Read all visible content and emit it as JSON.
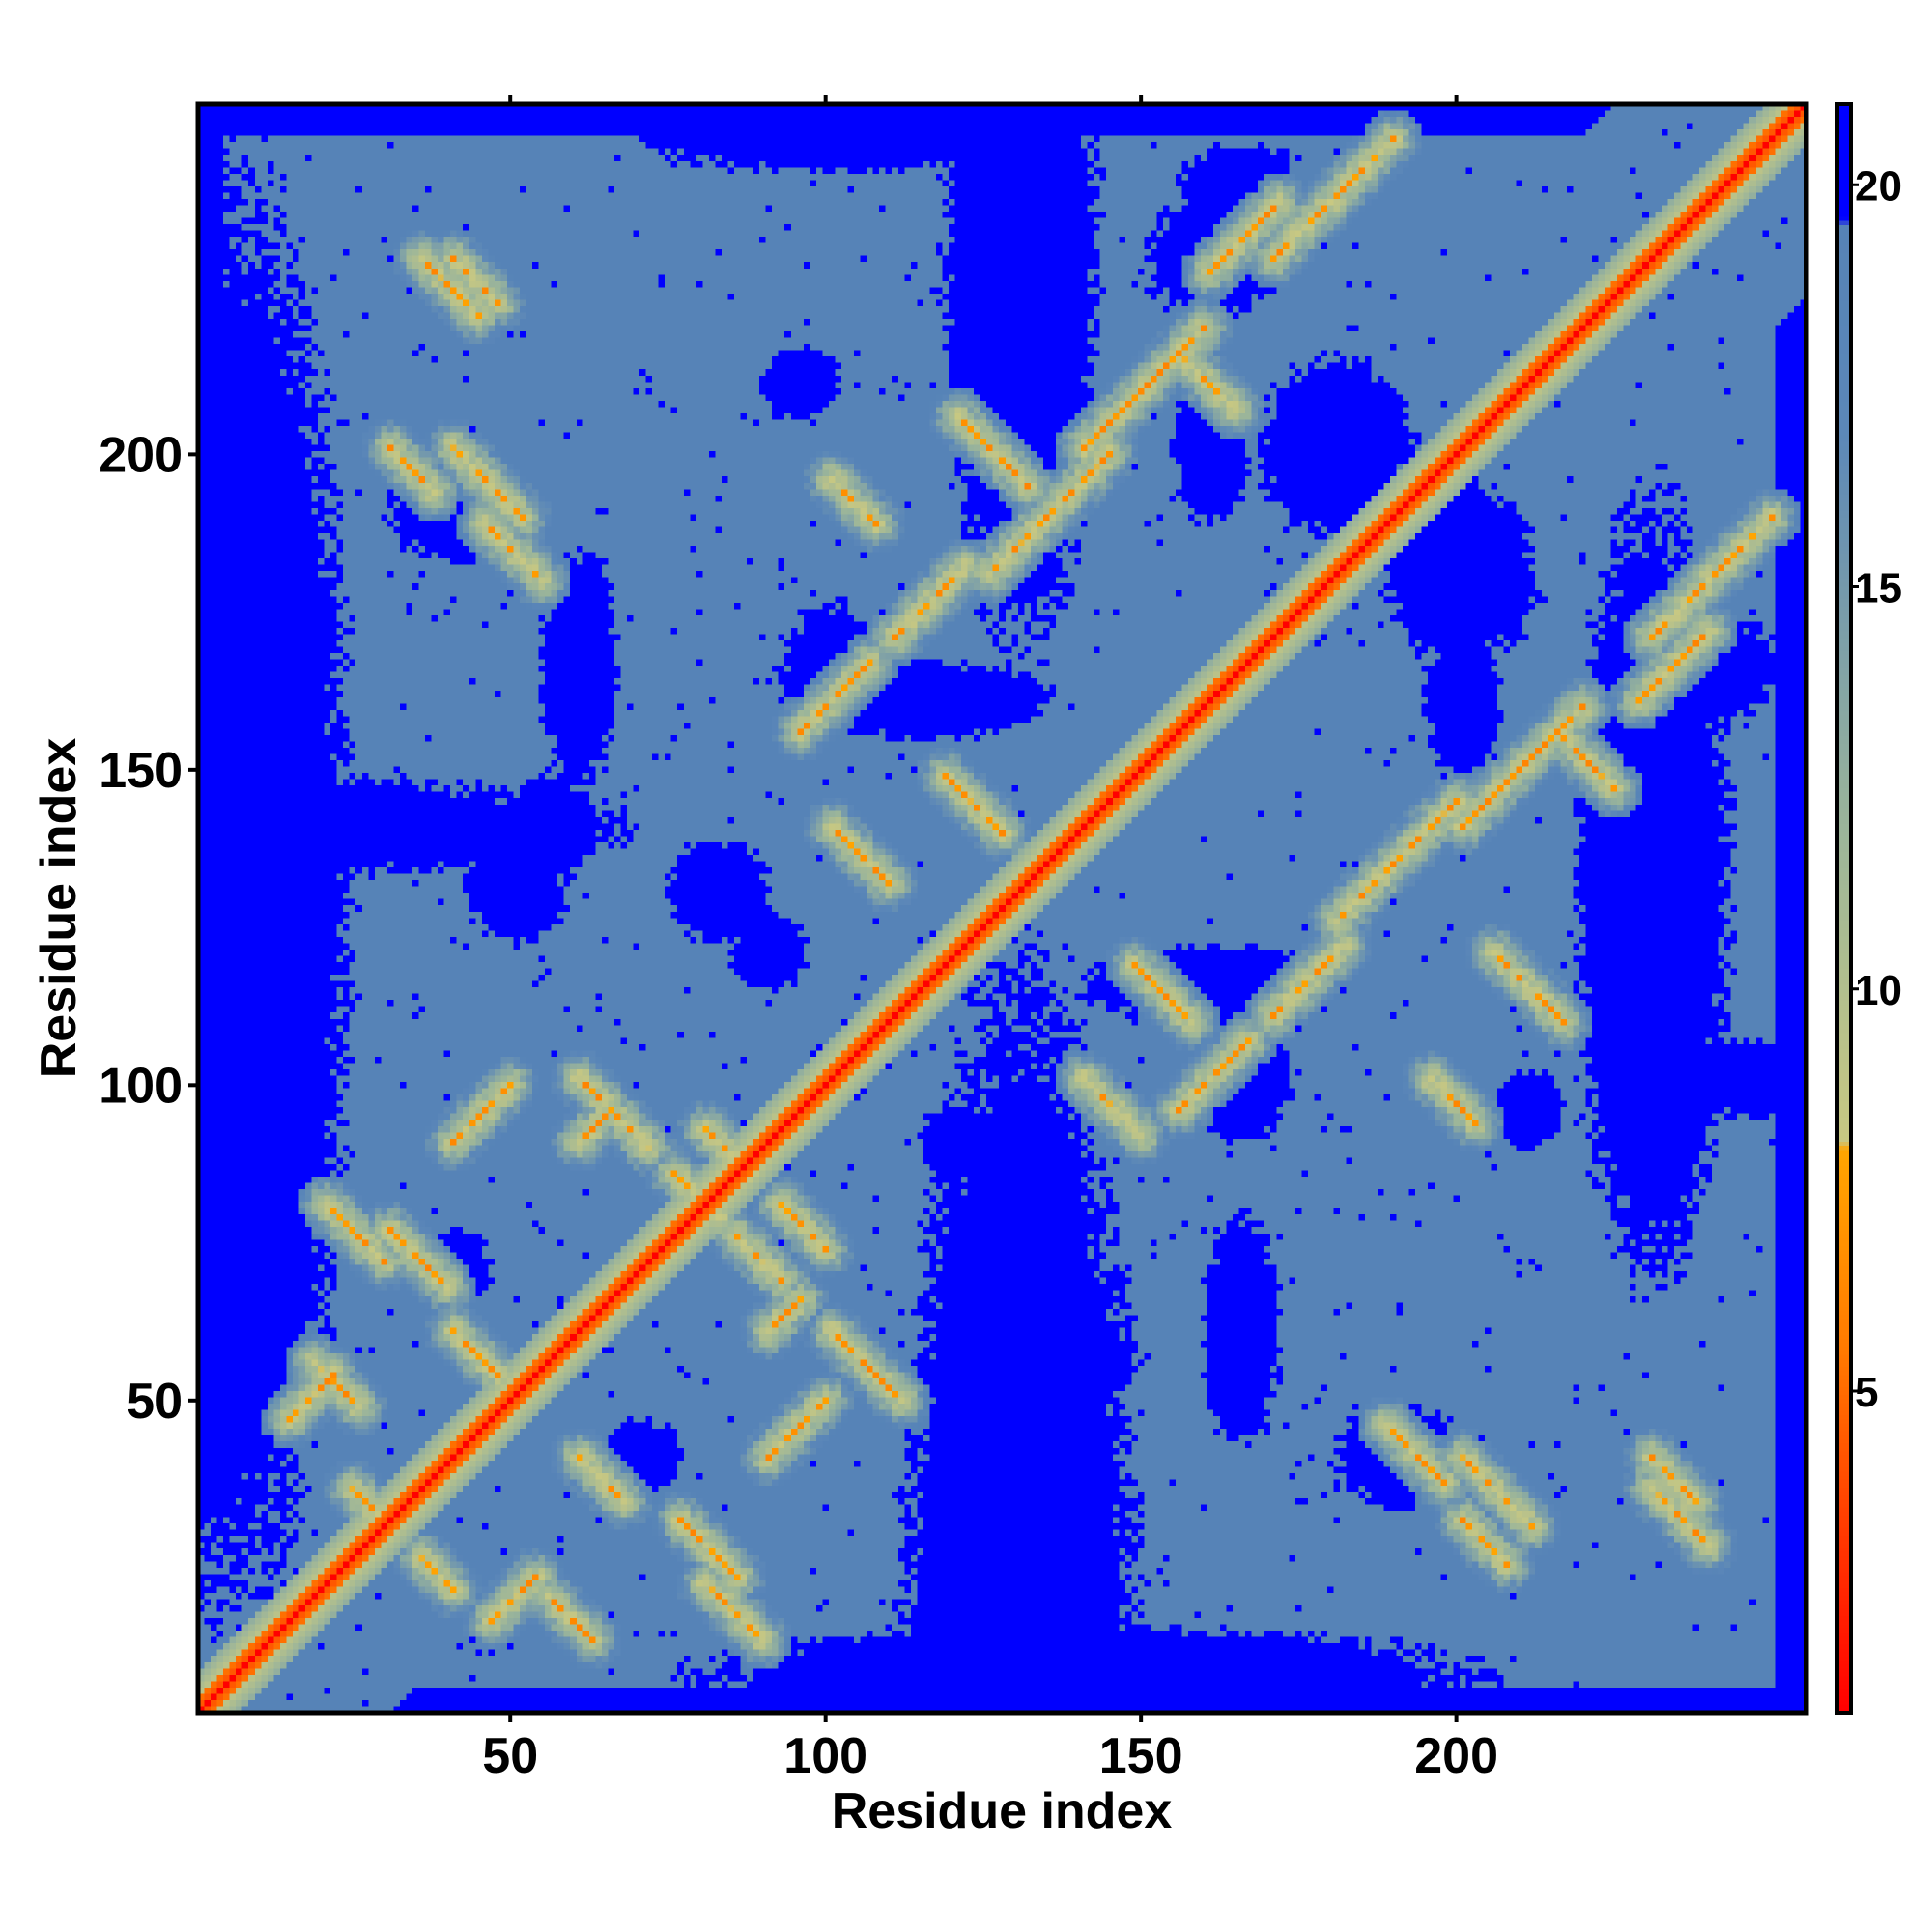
{
  "chart_data": {
    "type": "heatmap",
    "title": "",
    "xlabel": "Residue index",
    "ylabel": "Residue index",
    "xlim": [
      1,
      255
    ],
    "ylim": [
      1,
      255
    ],
    "x_ticks": [
      50,
      100,
      150,
      200
    ],
    "y_ticks": [
      50,
      100,
      150,
      200
    ],
    "x_tick_labels": [
      "50",
      "100",
      "150",
      "200"
    ],
    "y_tick_labels": [
      "50",
      "100",
      "150",
      "200"
    ],
    "n_residues": 255,
    "matrix": "symmetric pairwise residue distance map; values shown by color scale",
    "colorbar": {
      "range": [
        1,
        21
      ],
      "ticks": [
        5,
        10,
        15,
        20
      ],
      "tick_labels": [
        "5",
        "10",
        "15",
        "20"
      ],
      "stops": [
        {
          "value": 1,
          "color": "#ff0000"
        },
        {
          "value": 3,
          "color": "#ff3300"
        },
        {
          "value": 5.5,
          "color": "#ff7a00"
        },
        {
          "value": 8,
          "color": "#ffa500"
        },
        {
          "value": 8.1,
          "color": "#c8c882"
        },
        {
          "value": 12,
          "color": "#9bb59a"
        },
        {
          "value": 17,
          "color": "#5b87b8"
        },
        {
          "value": 19.5,
          "color": "#5683b7"
        },
        {
          "value": 19.6,
          "color": "#0000ff"
        },
        {
          "value": 21,
          "color": "#0000ff"
        }
      ]
    },
    "background_color": "#5683b7",
    "far_color": "#0000ff",
    "grid": false,
    "legend": "colorbar-right"
  }
}
